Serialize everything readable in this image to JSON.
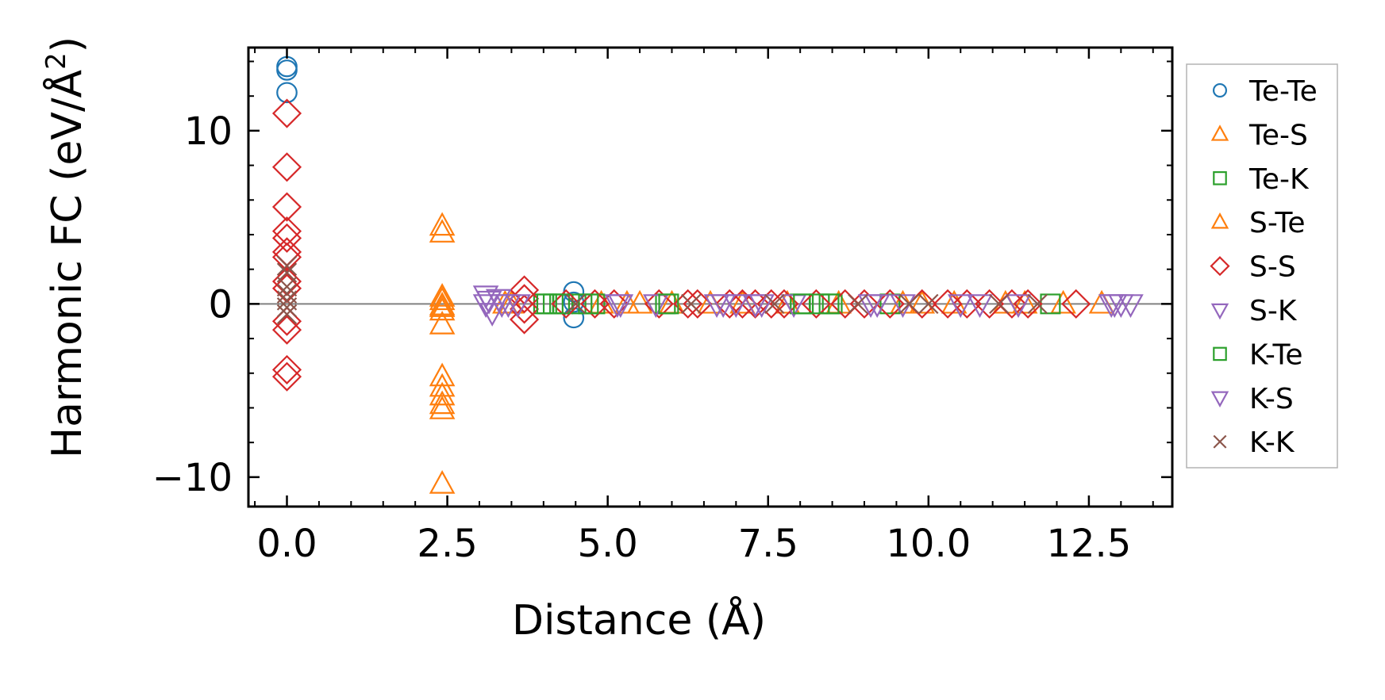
{
  "chart_data": {
    "type": "scatter",
    "title": "",
    "xlabel": "Distance (Å)",
    "ylabel_main": "Harmonic FC (eV/Å",
    "ylabel_sup": "2",
    "ylabel_tail": ")",
    "xlim": [
      -0.6,
      13.8
    ],
    "ylim": [
      -11.7,
      14.8
    ],
    "xticks": [
      0.0,
      2.5,
      5.0,
      7.5,
      10.0,
      12.5
    ],
    "xtick_labels": [
      "0.0",
      "2.5",
      "5.0",
      "7.5",
      "10.0",
      "12.5"
    ],
    "yticks": [
      -10,
      0,
      10
    ],
    "ytick_labels": [
      "−10",
      "0",
      "10"
    ],
    "x_minor_step": 0.5,
    "y_minor_step": 2,
    "zero_line": true,
    "legend_position": "outside right",
    "series": [
      {
        "name": "Te-Te",
        "marker": "circle",
        "color": "#1f77b4",
        "points": [
          [
            0,
            13.7
          ],
          [
            0,
            13.5
          ],
          [
            0,
            12.2
          ],
          [
            4.47,
            0.7
          ],
          [
            4.47,
            -0.8
          ],
          [
            4.47,
            0.1
          ]
        ]
      },
      {
        "name": "Te-S",
        "marker": "triangle-up",
        "color": "#ff7f0e",
        "points": [
          [
            2.42,
            4.5
          ],
          [
            2.42,
            4.1
          ],
          [
            2.42,
            0.4
          ],
          [
            2.42,
            -0.1
          ],
          [
            2.42,
            -0.4
          ],
          [
            2.42,
            -1.2
          ],
          [
            2.42,
            -4.2
          ],
          [
            2.42,
            -4.8
          ],
          [
            2.42,
            -5.3
          ],
          [
            2.42,
            -5.8
          ],
          [
            2.42,
            -6.1
          ],
          [
            2.42,
            -10.4
          ],
          [
            3.5,
            0
          ],
          [
            4.9,
            0
          ],
          [
            5.5,
            0
          ],
          [
            6.0,
            0
          ],
          [
            6.6,
            0
          ],
          [
            7.8,
            0
          ],
          [
            8.6,
            0
          ],
          [
            9.6,
            0
          ],
          [
            10.4,
            0
          ],
          [
            11.2,
            0
          ],
          [
            12.1,
            0
          ],
          [
            12.7,
            0
          ]
        ]
      },
      {
        "name": "Te-K",
        "marker": "square",
        "color": "#2ca02c",
        "points": [
          [
            4.0,
            0
          ],
          [
            4.15,
            0
          ],
          [
            4.3,
            0
          ],
          [
            4.6,
            0
          ],
          [
            4.8,
            0
          ],
          [
            5.9,
            0
          ],
          [
            8.0,
            0
          ],
          [
            8.3,
            0
          ],
          [
            8.5,
            0
          ],
          [
            9.4,
            0
          ],
          [
            11.9,
            0
          ]
        ]
      },
      {
        "name": "S-Te",
        "marker": "triangle-up",
        "color": "#ff7f0e",
        "points": [
          [
            2.42,
            0.2
          ],
          [
            2.42,
            -0.2
          ],
          [
            3.4,
            0
          ],
          [
            5.3,
            0
          ],
          [
            7.1,
            0
          ],
          [
            9.9,
            0
          ],
          [
            11.5,
            0
          ]
        ]
      },
      {
        "name": "S-S",
        "marker": "diamond",
        "color": "#d62728",
        "points": [
          [
            0,
            11.0
          ],
          [
            0,
            7.9
          ],
          [
            0,
            5.6
          ],
          [
            0,
            4.2
          ],
          [
            0,
            3.8
          ],
          [
            0,
            3.0
          ],
          [
            0,
            2.7
          ],
          [
            0,
            1.3
          ],
          [
            0,
            0.9
          ],
          [
            0,
            -1.0
          ],
          [
            0,
            -1.5
          ],
          [
            0,
            -3.8
          ],
          [
            0,
            -4.2
          ],
          [
            3.7,
            0.8
          ],
          [
            3.7,
            0.3
          ],
          [
            3.7,
            -0.3
          ],
          [
            3.7,
            -0.9
          ],
          [
            4.35,
            0
          ],
          [
            4.8,
            0
          ],
          [
            5.1,
            0
          ],
          [
            5.8,
            0
          ],
          [
            6.25,
            0
          ],
          [
            6.4,
            0
          ],
          [
            6.9,
            0
          ],
          [
            7.1,
            0
          ],
          [
            7.3,
            0
          ],
          [
            7.55,
            0
          ],
          [
            7.75,
            0
          ],
          [
            8.25,
            0
          ],
          [
            8.7,
            0
          ],
          [
            9.0,
            0
          ],
          [
            9.4,
            0
          ],
          [
            9.9,
            0
          ],
          [
            10.3,
            0
          ],
          [
            10.6,
            0
          ],
          [
            10.95,
            0
          ],
          [
            11.3,
            0
          ],
          [
            11.55,
            0
          ],
          [
            12.3,
            0
          ]
        ]
      },
      {
        "name": "S-K",
        "marker": "triangle-down",
        "color": "#9467bd",
        "points": [
          [
            3.1,
            0.5
          ],
          [
            3.1,
            0
          ],
          [
            3.2,
            -0.5
          ],
          [
            3.3,
            0.3
          ],
          [
            3.45,
            0
          ],
          [
            3.6,
            0
          ],
          [
            5.15,
            0
          ],
          [
            5.75,
            0
          ],
          [
            6.7,
            0
          ],
          [
            7.0,
            0
          ],
          [
            7.3,
            0
          ],
          [
            7.9,
            0
          ],
          [
            9.1,
            0
          ],
          [
            9.6,
            0
          ],
          [
            10.8,
            0
          ],
          [
            11.4,
            0
          ],
          [
            12.85,
            0
          ],
          [
            13.0,
            0
          ],
          [
            13.15,
            0
          ]
        ]
      },
      {
        "name": "K-Te",
        "marker": "square",
        "color": "#2ca02c",
        "points": [
          [
            4.05,
            0
          ],
          [
            4.25,
            0
          ],
          [
            4.7,
            0
          ],
          [
            5.95,
            0
          ],
          [
            8.05,
            0
          ],
          [
            8.45,
            0
          ]
        ]
      },
      {
        "name": "K-S",
        "marker": "triangle-down",
        "color": "#9467bd",
        "points": [
          [
            3.15,
            0.2
          ],
          [
            3.35,
            0
          ],
          [
            5.2,
            0
          ],
          [
            6.8,
            0
          ],
          [
            7.4,
            0
          ],
          [
            9.2,
            0
          ],
          [
            10.5,
            0
          ],
          [
            12.9,
            0
          ]
        ]
      },
      {
        "name": "K-K",
        "marker": "x",
        "color": "#8c564b",
        "points": [
          [
            0,
            2.2
          ],
          [
            0,
            1.8
          ],
          [
            0,
            1.0
          ],
          [
            0,
            0.6
          ],
          [
            0,
            0.2
          ],
          [
            0,
            -0.2
          ],
          [
            0,
            -0.6
          ],
          [
            4.5,
            0
          ],
          [
            6.3,
            0
          ],
          [
            7.6,
            0
          ],
          [
            8.9,
            0
          ],
          [
            9.7,
            0
          ],
          [
            10.0,
            0
          ],
          [
            11.1,
            0
          ],
          [
            11.7,
            0
          ]
        ]
      }
    ]
  }
}
